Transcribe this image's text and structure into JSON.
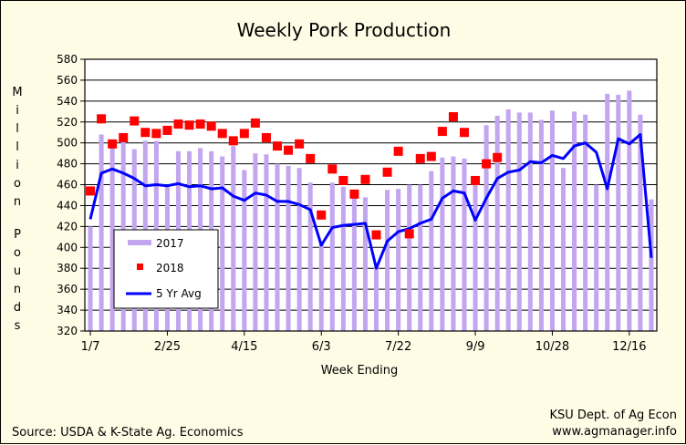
{
  "chart_data": {
    "type": "bar",
    "title": "Weekly Pork Production",
    "xlabel": "Week Ending",
    "ylabel": "Million Pounds",
    "ylim": [
      320,
      580
    ],
    "yticks": [
      320,
      340,
      360,
      380,
      400,
      420,
      440,
      460,
      480,
      500,
      520,
      540,
      560,
      580
    ],
    "xticks": [
      {
        "label": "1/7",
        "week": 1
      },
      {
        "label": "2/25",
        "week": 8
      },
      {
        "label": "4/15",
        "week": 15
      },
      {
        "label": "6/3",
        "week": 22
      },
      {
        "label": "7/22",
        "week": 29
      },
      {
        "label": "9/9",
        "week": 36
      },
      {
        "label": "10/28",
        "week": 43
      },
      {
        "label": "12/16",
        "week": 50
      }
    ],
    "grid": true,
    "legend": "lower-left",
    "series": [
      {
        "name": "2017",
        "kind": "bar",
        "color": "#c3a6f0",
        "values": [
          420,
          508,
          497,
          502,
          494,
          502,
          502,
          460,
          492,
          492,
          495,
          492,
          487,
          497,
          474,
          490,
          489,
          480,
          478,
          476,
          462,
          406,
          462,
          458,
          454,
          448,
          382,
          455,
          456,
          460,
          460,
          473,
          486,
          487,
          485,
          467,
          517,
          526,
          532,
          529,
          529,
          522,
          531,
          476,
          530,
          527,
          460,
          547,
          546,
          550,
          527,
          446
        ]
      },
      {
        "name": "2018",
        "kind": "marker",
        "color": "#ff0000",
        "values": [
          454,
          523,
          499,
          505,
          521,
          510,
          509,
          512,
          518,
          517,
          518,
          516,
          509,
          502,
          509,
          519,
          505,
          497,
          493,
          499,
          485,
          431,
          475,
          464,
          451,
          465,
          412,
          472,
          492,
          413,
          485,
          487,
          511,
          525,
          510,
          464,
          480,
          486
        ]
      },
      {
        "name": "5 Yr Avg",
        "kind": "line",
        "color": "#0000ff",
        "values": [
          427,
          471,
          475,
          471,
          466,
          459,
          460,
          459,
          461,
          458,
          459,
          456,
          457,
          449,
          445,
          452,
          450,
          444,
          444,
          441,
          436,
          402,
          419,
          421,
          422,
          423,
          380,
          406,
          415,
          418,
          423,
          427,
          447,
          454,
          452,
          426,
          447,
          466,
          472,
          474,
          482,
          481,
          488,
          485,
          497,
          500,
          491,
          456,
          504,
          499,
          508,
          390
        ]
      }
    ]
  },
  "footer": {
    "source": "Source:  USDA & K-State Ag. Economics",
    "credit_line1": "KSU Dept. of Ag Econ",
    "credit_line2": "www.agmanager.info"
  }
}
